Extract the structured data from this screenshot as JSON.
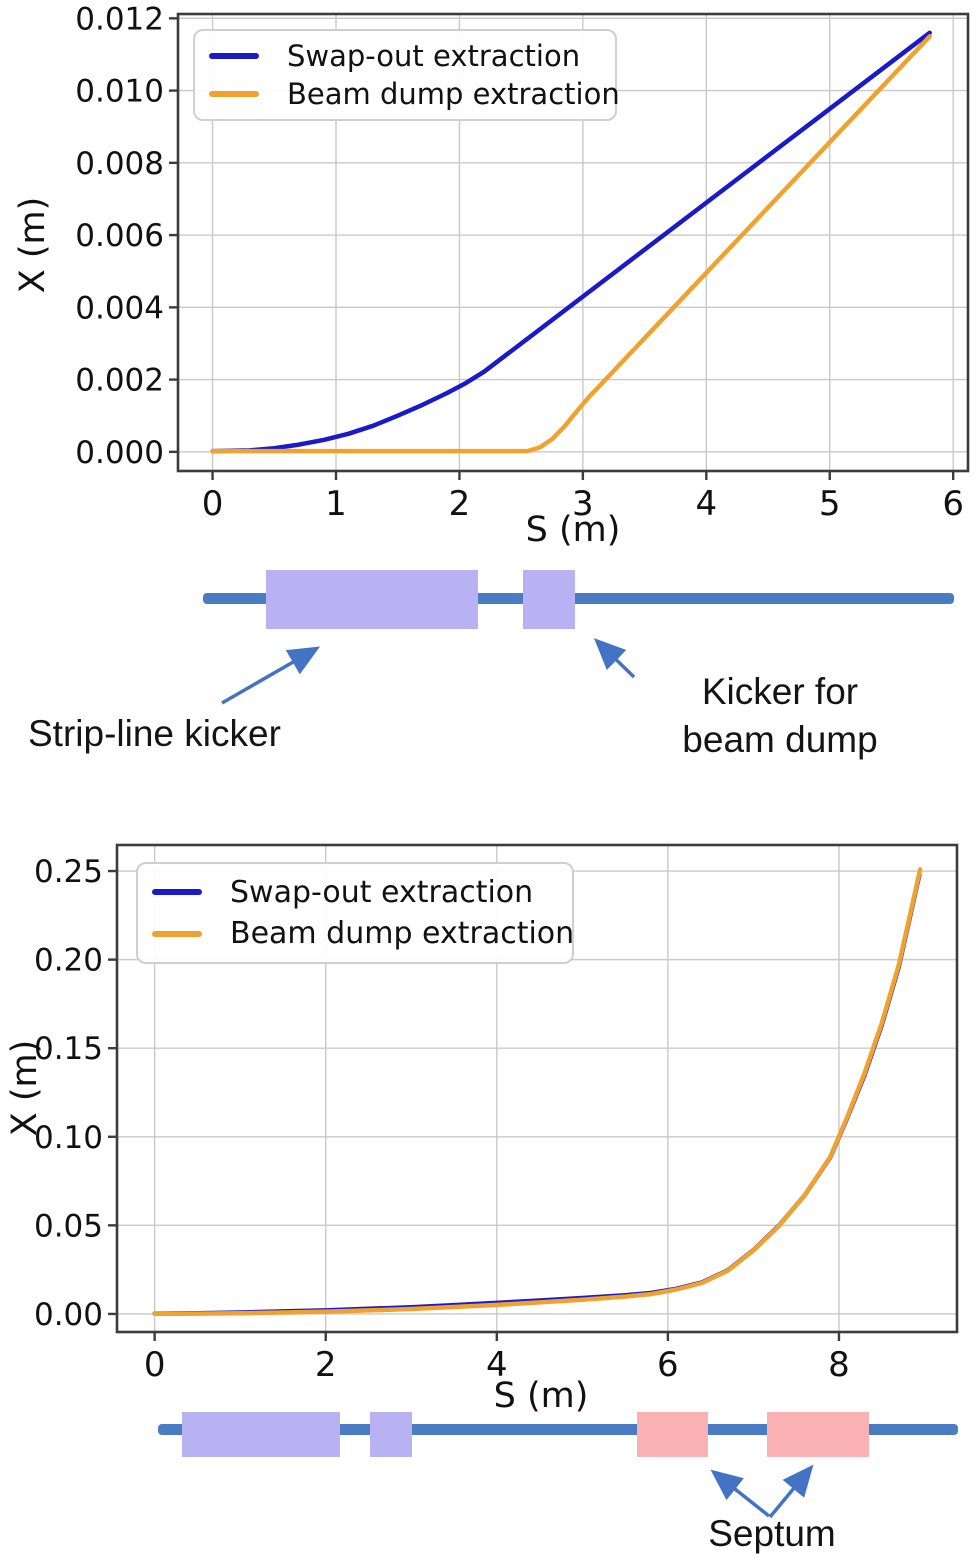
{
  "figure": {
    "annotations": {
      "stripline_kicker": "Strip-line kicker",
      "kicker_dump_line1": "Kicker for",
      "kicker_dump_line2": "beam dump",
      "septum": "Septum"
    }
  },
  "colors": {
    "swap_out_line": "#1a1ac8",
    "beam_dump_line": "#f0a22e",
    "beamline": "#4a7cc4",
    "kicker_block": "#b8b2f2",
    "septum_block": "#f9b1b4",
    "arrow": "#4472c4",
    "grid": "#c9c9c9",
    "spine": "#3c3c3c",
    "tick_text": "#111111"
  },
  "chart_data": [
    {
      "type": "line",
      "title": "",
      "xlabel": "S (m)",
      "ylabel": "X (m)",
      "xlim": [
        -0.28,
        6.12
      ],
      "ylim": [
        -0.00053,
        0.01212
      ],
      "grid": true,
      "legend_position": "upper left",
      "xticks": {
        "values": [
          0,
          1,
          2,
          3,
          4,
          5,
          6
        ],
        "labels": [
          "0",
          "1",
          "2",
          "3",
          "4",
          "5",
          "6"
        ]
      },
      "yticks": {
        "values": [
          0,
          0.002,
          0.004,
          0.006,
          0.008,
          0.01,
          0.012
        ],
        "labels": [
          "0.000",
          "0.002",
          "0.004",
          "0.006",
          "0.008",
          "0.010",
          "0.012"
        ]
      },
      "series": [
        {
          "name": "Swap-out extraction",
          "color": "#1a1ac8",
          "points": [
            [
              0,
              2e-05
            ],
            [
              0.3,
              4e-05
            ],
            [
              0.5,
              0.0001
            ],
            [
              0.7,
              0.0002
            ],
            [
              0.9,
              0.00033
            ],
            [
              1.1,
              0.0005
            ],
            [
              1.3,
              0.00072
            ],
            [
              1.5,
              0.001
            ],
            [
              1.7,
              0.0013
            ],
            [
              1.9,
              0.00163
            ],
            [
              2.05,
              0.0019
            ],
            [
              2.2,
              0.00222
            ],
            [
              5.81,
              0.0116
            ]
          ]
        },
        {
          "name": "Beam dump extraction",
          "color": "#f0a22e",
          "points": [
            [
              0,
              2e-05
            ],
            [
              2.55,
              2e-05
            ],
            [
              2.65,
              0.00012
            ],
            [
              2.75,
              0.00035
            ],
            [
              2.85,
              0.0007
            ],
            [
              2.95,
              0.00112
            ],
            [
              3.05,
              0.00152
            ],
            [
              3.15,
              0.00188
            ],
            [
              5.81,
              0.0115
            ]
          ]
        }
      ]
    },
    {
      "type": "line",
      "title": "",
      "xlabel": "S (m)",
      "ylabel": "X (m)",
      "xlim": [
        -0.44,
        9.38
      ],
      "ylim": [
        -0.0102,
        0.2647
      ],
      "grid": true,
      "legend_position": "upper left",
      "xticks": {
        "values": [
          0,
          2,
          4,
          6,
          8
        ],
        "labels": [
          "0",
          "2",
          "4",
          "6",
          "8"
        ]
      },
      "yticks": {
        "values": [
          0,
          0.05,
          0.1,
          0.15,
          0.2,
          0.25
        ],
        "labels": [
          "0.00",
          "0.05",
          "0.10",
          "0.15",
          "0.20",
          "0.25"
        ]
      },
      "series": [
        {
          "name": "Swap-out extraction",
          "color": "#1a1ac8",
          "points": [
            [
              0,
              0.0002
            ],
            [
              0.5,
              0.0004
            ],
            [
              1,
              0.0008
            ],
            [
              1.5,
              0.0014
            ],
            [
              2,
              0.002
            ],
            [
              2.5,
              0.0029
            ],
            [
              3,
              0.0038
            ],
            [
              3.5,
              0.005
            ],
            [
              4,
              0.0062
            ],
            [
              4.5,
              0.0076
            ],
            [
              5,
              0.009
            ],
            [
              5.5,
              0.0106
            ],
            [
              5.8,
              0.0118
            ],
            [
              6.1,
              0.0142
            ],
            [
              6.4,
              0.0178
            ],
            [
              6.7,
              0.0246
            ],
            [
              7,
              0.036
            ],
            [
              7.3,
              0.05
            ],
            [
              7.6,
              0.067
            ],
            [
              7.9,
              0.0885
            ],
            [
              8.1,
              0.111
            ],
            [
              8.3,
              0.135
            ],
            [
              8.5,
              0.163
            ],
            [
              8.7,
              0.196
            ],
            [
              8.94,
              0.248
            ]
          ]
        },
        {
          "name": "Beam dump extraction",
          "color": "#f0a22e",
          "points": [
            [
              0,
              0.0001
            ],
            [
              0.5,
              0.0002
            ],
            [
              1,
              0.0004
            ],
            [
              1.5,
              0.0008
            ],
            [
              2,
              0.0013
            ],
            [
              2.5,
              0.002
            ],
            [
              3,
              0.0028
            ],
            [
              3.5,
              0.0039
            ],
            [
              4,
              0.0051
            ],
            [
              4.5,
              0.0065
            ],
            [
              5,
              0.008
            ],
            [
              5.5,
              0.0098
            ],
            [
              5.8,
              0.0112
            ],
            [
              6.1,
              0.0138
            ],
            [
              6.4,
              0.0175
            ],
            [
              6.7,
              0.0244
            ],
            [
              7,
              0.0358
            ],
            [
              7.3,
              0.0498
            ],
            [
              7.6,
              0.067
            ],
            [
              7.9,
              0.0888
            ],
            [
              8.1,
              0.1115
            ],
            [
              8.3,
              0.136
            ],
            [
              8.5,
              0.164
            ],
            [
              8.7,
              0.197
            ],
            [
              8.95,
              0.251
            ]
          ]
        }
      ]
    }
  ],
  "schematics": {
    "top": {
      "elements": [
        "beamline",
        "strip-line-kicker-block",
        "beam-dump-kicker-block"
      ]
    },
    "bottom": {
      "elements": [
        "beamline",
        "strip-line-kicker-block",
        "beam-dump-kicker-block",
        "septum-block-1",
        "septum-block-2"
      ]
    }
  }
}
